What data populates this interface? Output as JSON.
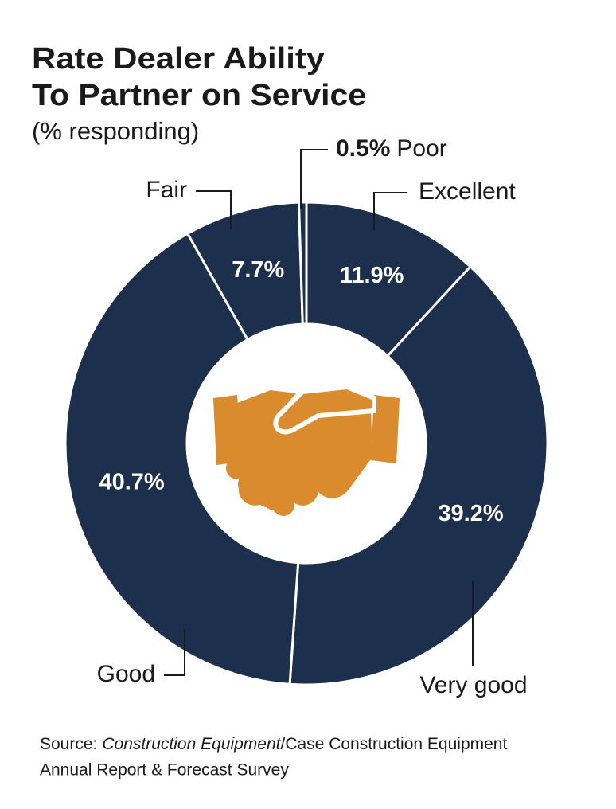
{
  "chart_data": {
    "type": "donut",
    "title": [
      "Rate Dealer Ability",
      "To Partner on Service"
    ],
    "subtitle": "(% responding)",
    "categories": [
      "Excellent",
      "Very good",
      "Good",
      "Fair",
      "Poor"
    ],
    "values": [
      11.9,
      39.2,
      40.7,
      7.7,
      0.5
    ],
    "value_labels": [
      "11.9%",
      "39.2%",
      "40.7%",
      "7.7%",
      "0.5%"
    ],
    "color": "#1c2f4d",
    "source": {
      "prefix": "Source:",
      "italic": "Construction Equipment",
      "rest": "/Case Construction Equipment",
      "line2": "Annual Report & Forecast Survey"
    }
  }
}
